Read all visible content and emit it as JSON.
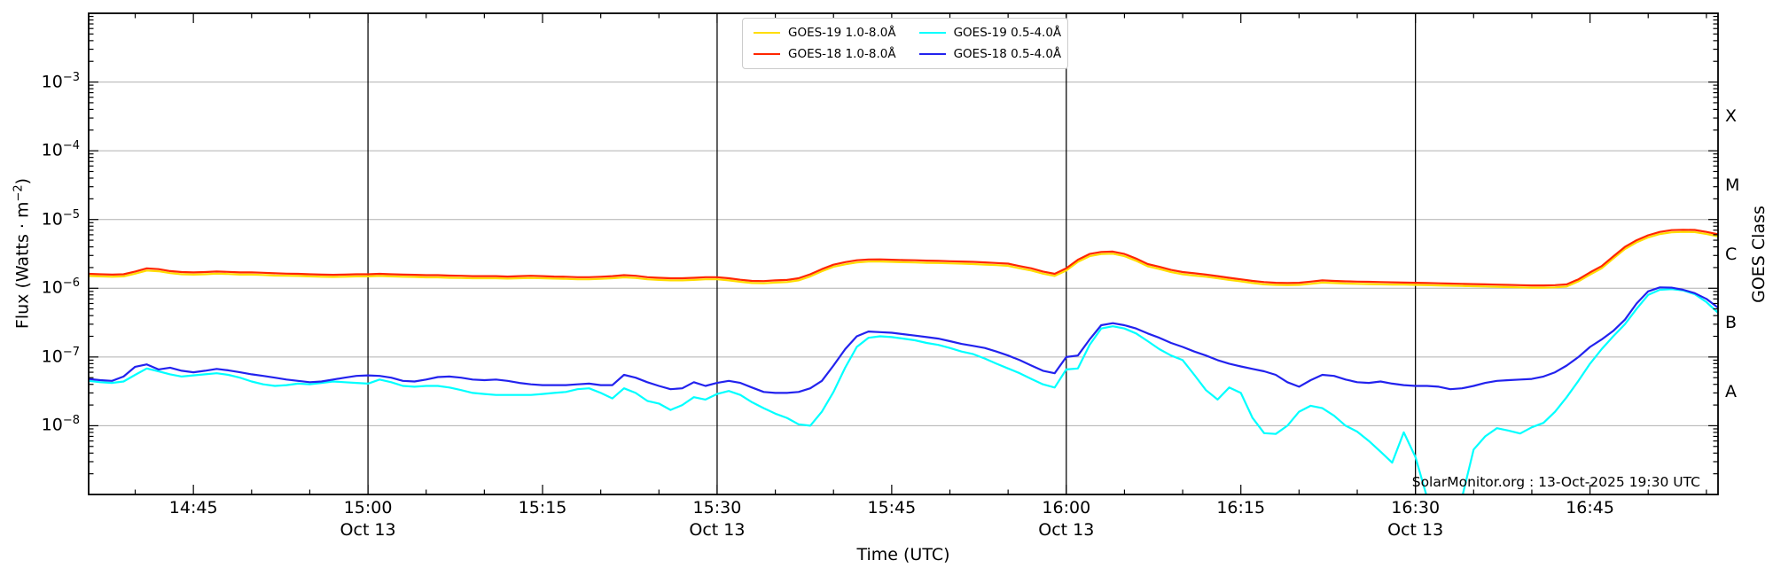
{
  "annotation": "SolarMonitor.org : 13-Oct-2025 19:30 UTC",
  "chart_data": {
    "type": "line",
    "title": "",
    "xlabel": "Time (UTC)",
    "ylabel": "Flux (Watts · m⁻²)",
    "ylabel_pre": "Flux (Watts · m",
    "ylabel_sup": "−2",
    "ylabel_post": ")",
    "y2label": "GOES Class",
    "yscale": "log",
    "ylim": [
      1e-09,
      0.01
    ],
    "grid": "horizontal-decades",
    "legend_position": "top-center",
    "x_start": "14:36 UTC Oct 13",
    "x_end": "16:56 UTC Oct 13",
    "x_total_minutes": 140,
    "dt_min": 1,
    "x_ticks": [
      {
        "label": "14:45",
        "t": 9
      },
      {
        "label": "15:00",
        "date": "Oct 13",
        "t": 24
      },
      {
        "label": "15:15",
        "t": 39
      },
      {
        "label": "15:30",
        "date": "Oct 13",
        "t": 54
      },
      {
        "label": "15:45",
        "t": 69
      },
      {
        "label": "16:00",
        "date": "Oct 13",
        "t": 84
      },
      {
        "label": "16:15",
        "t": 99
      },
      {
        "label": "16:30",
        "date": "Oct 13",
        "t": 114
      },
      {
        "label": "16:45",
        "t": 129
      }
    ],
    "y_tick_exponents": [
      -3,
      -4,
      -5,
      -6,
      -7,
      -8
    ],
    "goes_classes": [
      {
        "label": "X",
        "log_center": -3.5
      },
      {
        "label": "M",
        "log_center": -4.5
      },
      {
        "label": "C",
        "log_center": -5.5
      },
      {
        "label": "B",
        "log_center": -6.5
      },
      {
        "label": "A",
        "log_center": -7.5
      }
    ],
    "colors": {
      "goes19_long": "#ffdd00",
      "goes18_long": "#ff2600",
      "goes19_short": "#00ffff",
      "goes18_short": "#2222ee",
      "grid": "#b0b0b0",
      "date_line": "#000000"
    },
    "series": [
      {
        "name": "GOES-19 1.0-8.0Å",
        "color": "#ffdd00",
        "scale": 1e-06,
        "values": [
          1.51,
          1.49,
          1.47,
          1.49,
          1.63,
          1.81,
          1.77,
          1.66,
          1.6,
          1.58,
          1.6,
          1.63,
          1.61,
          1.58,
          1.58,
          1.56,
          1.53,
          1.52,
          1.51,
          1.49,
          1.47,
          1.46,
          1.47,
          1.49,
          1.49,
          1.51,
          1.49,
          1.47,
          1.46,
          1.44,
          1.44,
          1.42,
          1.41,
          1.4,
          1.4,
          1.4,
          1.38,
          1.4,
          1.41,
          1.4,
          1.38,
          1.37,
          1.35,
          1.35,
          1.37,
          1.4,
          1.44,
          1.41,
          1.35,
          1.32,
          1.3,
          1.3,
          1.32,
          1.35,
          1.35,
          1.3,
          1.24,
          1.19,
          1.18,
          1.21,
          1.23,
          1.3,
          1.49,
          1.77,
          2.05,
          2.23,
          2.37,
          2.44,
          2.45,
          2.42,
          2.39,
          2.37,
          2.34,
          2.33,
          2.3,
          2.28,
          2.25,
          2.21,
          2.17,
          2.12,
          1.95,
          1.81,
          1.63,
          1.51,
          1.81,
          2.42,
          2.93,
          3.14,
          3.18,
          2.93,
          2.51,
          2.09,
          1.91,
          1.72,
          1.6,
          1.53,
          1.47,
          1.4,
          1.32,
          1.26,
          1.19,
          1.14,
          1.12,
          1.11,
          1.12,
          1.16,
          1.21,
          1.19,
          1.17,
          1.16,
          1.15,
          1.14,
          1.13,
          1.13,
          1.12,
          1.11,
          1.1,
          1.09,
          1.08,
          1.07,
          1.06,
          1.05,
          1.04,
          1.03,
          1.02,
          1.02,
          1.03,
          1.06,
          1.26,
          1.58,
          1.95,
          2.7,
          3.72,
          4.65,
          5.49,
          6.14,
          6.51,
          6.6,
          6.56,
          6.14,
          5.67
        ]
      },
      {
        "name": "GOES-18 1.0-8.0Å",
        "color": "#ff2600",
        "scale": 1e-06,
        "values": [
          1.62,
          1.6,
          1.58,
          1.6,
          1.75,
          1.95,
          1.9,
          1.78,
          1.72,
          1.7,
          1.72,
          1.75,
          1.73,
          1.7,
          1.7,
          1.68,
          1.65,
          1.63,
          1.62,
          1.6,
          1.58,
          1.57,
          1.58,
          1.6,
          1.6,
          1.62,
          1.6,
          1.58,
          1.57,
          1.55,
          1.55,
          1.53,
          1.52,
          1.5,
          1.5,
          1.5,
          1.48,
          1.5,
          1.52,
          1.5,
          1.48,
          1.47,
          1.45,
          1.45,
          1.47,
          1.5,
          1.55,
          1.52,
          1.45,
          1.42,
          1.4,
          1.4,
          1.42,
          1.45,
          1.45,
          1.4,
          1.33,
          1.28,
          1.27,
          1.3,
          1.32,
          1.4,
          1.6,
          1.9,
          2.2,
          2.4,
          2.55,
          2.62,
          2.63,
          2.6,
          2.57,
          2.55,
          2.52,
          2.5,
          2.47,
          2.45,
          2.42,
          2.38,
          2.33,
          2.28,
          2.1,
          1.95,
          1.75,
          1.62,
          1.95,
          2.6,
          3.15,
          3.38,
          3.42,
          3.15,
          2.7,
          2.25,
          2.05,
          1.85,
          1.72,
          1.65,
          1.58,
          1.5,
          1.42,
          1.35,
          1.28,
          1.23,
          1.2,
          1.19,
          1.2,
          1.25,
          1.3,
          1.28,
          1.26,
          1.25,
          1.24,
          1.23,
          1.22,
          1.21,
          1.2,
          1.19,
          1.18,
          1.17,
          1.16,
          1.15,
          1.14,
          1.13,
          1.12,
          1.11,
          1.1,
          1.1,
          1.11,
          1.14,
          1.35,
          1.7,
          2.1,
          2.9,
          4.0,
          5.0,
          5.9,
          6.6,
          7.0,
          7.1,
          7.05,
          6.6,
          6.1
        ]
      },
      {
        "name": "GOES-19 0.5-4.0Å",
        "color": "#00ffff",
        "scale": 1e-08,
        "values": [
          4.5,
          4.3,
          4.2,
          4.4,
          5.5,
          6.8,
          6.2,
          5.6,
          5.2,
          5.4,
          5.6,
          5.8,
          5.5,
          5.0,
          4.4,
          4.0,
          3.8,
          3.9,
          4.1,
          4.0,
          4.2,
          4.4,
          4.3,
          4.2,
          4.1,
          4.7,
          4.3,
          3.8,
          3.7,
          3.8,
          3.8,
          3.6,
          3.3,
          3.0,
          2.9,
          2.8,
          2.8,
          2.8,
          2.8,
          2.9,
          3.0,
          3.1,
          3.4,
          3.5,
          3.0,
          2.5,
          3.5,
          3.0,
          2.3,
          2.1,
          1.7,
          2.0,
          2.6,
          2.4,
          2.9,
          3.2,
          2.8,
          2.2,
          1.8,
          1.5,
          1.3,
          1.05,
          1.0,
          1.6,
          3.1,
          7.0,
          14,
          19,
          20,
          19.5,
          18.5,
          17.5,
          16,
          15,
          13.5,
          12,
          11,
          9.5,
          8.0,
          6.8,
          5.8,
          4.8,
          4.0,
          3.6,
          6.6,
          6.8,
          15,
          26,
          28,
          26,
          22,
          17,
          13,
          10.5,
          9.0,
          5.5,
          3.3,
          2.4,
          3.6,
          3.0,
          1.3,
          0.78,
          0.76,
          1.0,
          1.6,
          1.95,
          1.8,
          1.4,
          1.0,
          0.82,
          0.6,
          0.42,
          0.29,
          0.8,
          0.35,
          0.09,
          0.08,
          0.08,
          0.09,
          0.45,
          0.7,
          0.92,
          0.85,
          0.77,
          0.95,
          1.1,
          1.6,
          2.6,
          4.5,
          8.0,
          13,
          20,
          30,
          50,
          80,
          95,
          97,
          93,
          82,
          63,
          44
        ]
      },
      {
        "name": "GOES-18 0.5-4.0Å",
        "color": "#2222ee",
        "scale": 1e-08,
        "values": [
          4.8,
          4.6,
          4.5,
          5.2,
          7.2,
          7.8,
          6.6,
          7.0,
          6.3,
          6.0,
          6.3,
          6.7,
          6.4,
          6.0,
          5.6,
          5.3,
          5.0,
          4.7,
          4.5,
          4.3,
          4.4,
          4.7,
          5.0,
          5.3,
          5.4,
          5.3,
          5.0,
          4.5,
          4.4,
          4.7,
          5.1,
          5.2,
          5.0,
          4.7,
          4.6,
          4.7,
          4.5,
          4.2,
          4.0,
          3.9,
          3.9,
          3.9,
          4.0,
          4.1,
          3.9,
          3.9,
          5.5,
          5.0,
          4.3,
          3.8,
          3.4,
          3.5,
          4.3,
          3.8,
          4.2,
          4.5,
          4.2,
          3.6,
          3.1,
          3.0,
          3.0,
          3.1,
          3.5,
          4.5,
          7.5,
          13,
          20,
          23.5,
          23.0,
          22.5,
          21.5,
          20.5,
          19.5,
          18.5,
          17.0,
          15.5,
          14.5,
          13.5,
          12.0,
          10.5,
          9.0,
          7.5,
          6.3,
          5.8,
          10.0,
          10.5,
          18,
          29,
          31,
          29,
          26,
          22,
          19,
          16,
          14,
          12,
          10.5,
          9.0,
          8.0,
          7.3,
          6.7,
          6.2,
          5.5,
          4.3,
          3.7,
          4.6,
          5.5,
          5.3,
          4.7,
          4.3,
          4.2,
          4.4,
          4.1,
          3.9,
          3.8,
          3.8,
          3.7,
          3.4,
          3.5,
          3.8,
          4.2,
          4.5,
          4.6,
          4.7,
          4.8,
          5.2,
          6.0,
          7.5,
          10,
          14,
          18,
          24,
          35,
          60,
          90,
          103,
          102,
          95,
          85,
          70,
          52
        ]
      }
    ]
  }
}
